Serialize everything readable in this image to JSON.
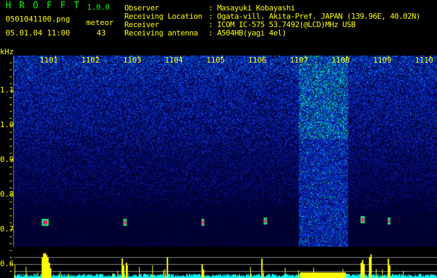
{
  "header": {
    "app_title": "H R O F F T",
    "version": "1.0.0",
    "filename": "0501041100.png",
    "datetime": "05.01.04 11:00",
    "meteor_label": "meteor",
    "meteor_count": "43"
  },
  "info": [
    {
      "label": "Observer",
      "value": ": Masayuki Kobayashi"
    },
    {
      "label": "Receiving Location",
      "value": ": Ogata-vill. Akita-Pref. JAPAN (139.96E, 40.02N)"
    },
    {
      "label": "Receiver",
      "value": ": ICOM IC-575 53.7492(@LCD)MHz USB"
    },
    {
      "label": "Receiving antenna",
      "value": ": A504HB(yagi 4el)"
    }
  ],
  "axis": {
    "y_unit": "kHz",
    "y_ticks": [
      "1.1",
      "1.0",
      "0.9",
      "0.8",
      "0.7",
      "0.6"
    ],
    "x_ticks": [
      "1101",
      "1102",
      "1103",
      "1104",
      "1105",
      "1106",
      "1107",
      "1108",
      "1109",
      "1110"
    ]
  },
  "colors": {
    "text": "#ffff00",
    "title": "#00ff00",
    "background": "#000000",
    "noise": "#0a1a8a",
    "echo": "#ff1a6a",
    "bar": "#ffff00",
    "baseline": "#00ffff"
  }
}
